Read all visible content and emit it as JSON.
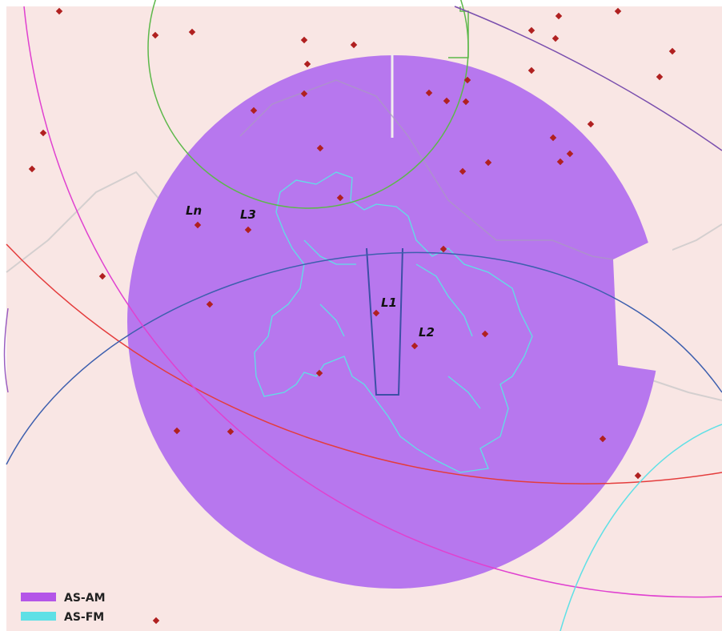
{
  "map_labels": [
    "Ln",
    "L3",
    "L1",
    "L2"
  ],
  "legend": [
    {
      "label": "AS-AM",
      "color": "#b455e8"
    },
    {
      "label": "AS-FM",
      "color": "#5fe0e6"
    }
  ]
}
